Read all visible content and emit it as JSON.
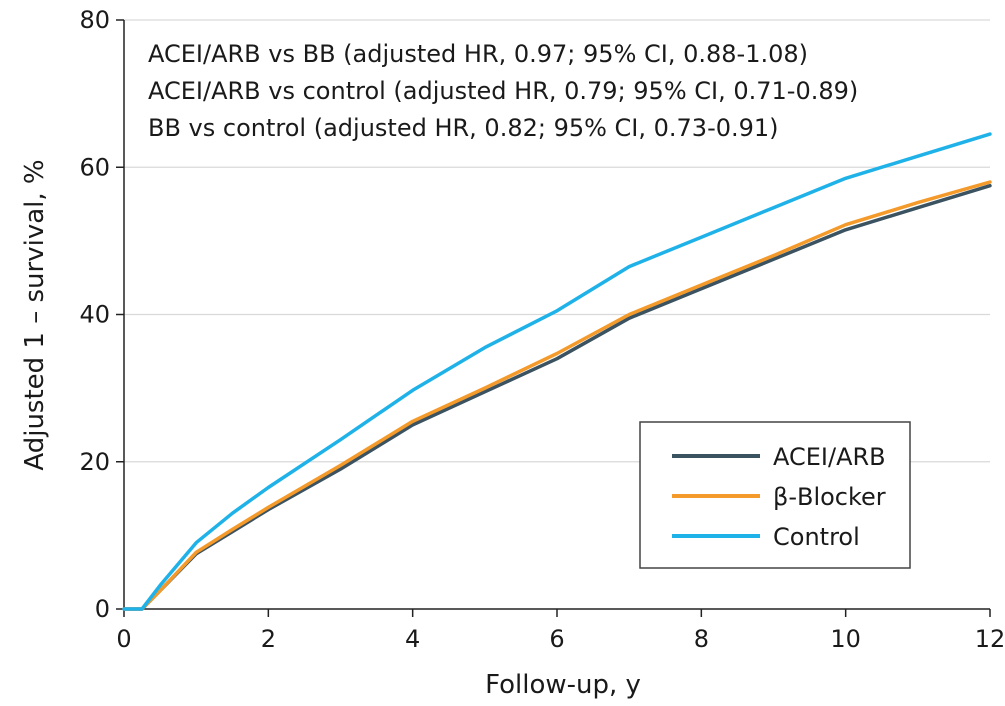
{
  "chart_data": {
    "type": "line",
    "xlabel": "Follow-up, y",
    "ylabel": "Adjusted 1 – survival, %",
    "xlim": [
      0,
      12
    ],
    "ylim": [
      0,
      80
    ],
    "xticks": [
      0,
      2,
      4,
      6,
      8,
      10,
      12
    ],
    "yticks": [
      0,
      20,
      40,
      60,
      80
    ],
    "grid": "horizontal",
    "legend_position": "lower-right",
    "annotations": [
      "ACEI/ARB vs BB (adjusted HR, 0.97; 95% CI, 0.88-1.08)",
      "ACEI/ARB vs control (adjusted HR, 0.79; 95% CI, 0.71-0.89)",
      "BB vs control (adjusted HR, 0.82; 95% CI, 0.73-0.91)"
    ],
    "series": [
      {
        "name": "ACEI/ARB",
        "color": "#3b5361",
        "x": [
          0,
          0.25,
          0.5,
          1,
          1.5,
          2,
          3,
          4,
          5,
          6,
          7,
          8,
          9,
          10,
          11,
          12
        ],
        "y": [
          0,
          0,
          2.5,
          7.5,
          10.5,
          13.5,
          19,
          25,
          29.5,
          34,
          39.5,
          43.5,
          47.5,
          51.5,
          54.5,
          57.5
        ]
      },
      {
        "name": "β-Blocker",
        "color": "#f39a2b",
        "x": [
          0,
          0.25,
          0.5,
          1,
          1.5,
          2,
          3,
          4,
          5,
          6,
          7,
          8,
          9,
          10,
          11,
          12
        ],
        "y": [
          0,
          0,
          2.5,
          7.7,
          10.8,
          13.8,
          19.5,
          25.5,
          30,
          34.7,
          40,
          44,
          48,
          52.2,
          55.2,
          58
        ]
      },
      {
        "name": "Control",
        "color": "#1fb2e8",
        "x": [
          0,
          0.25,
          0.5,
          1,
          1.5,
          2,
          3,
          4,
          5,
          6,
          7,
          8,
          9,
          10,
          11,
          12
        ],
        "y": [
          0,
          0,
          3.2,
          9,
          13,
          16.5,
          23,
          29.7,
          35.5,
          40.5,
          46.5,
          50.5,
          54.5,
          58.5,
          61.5,
          64.5
        ]
      }
    ]
  }
}
